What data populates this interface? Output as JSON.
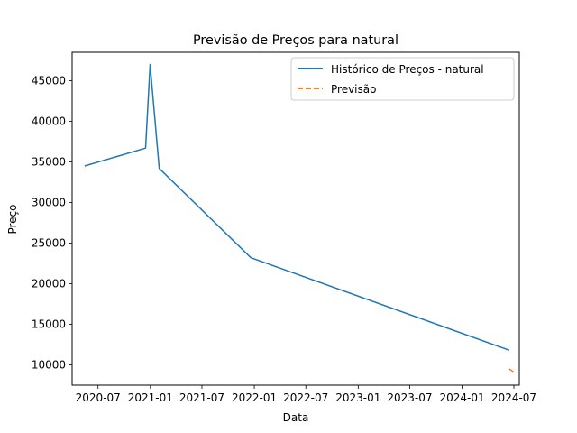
{
  "chart_data": {
    "type": "line",
    "title": "Previsão de Preços para natural",
    "xlabel": "Data",
    "ylabel": "Preço",
    "x_ticks": [
      "2020-07",
      "2021-01",
      "2021-07",
      "2022-01",
      "2022-07",
      "2023-01",
      "2023-07",
      "2024-01",
      "2024-07"
    ],
    "y_ticks": [
      10000,
      15000,
      20000,
      25000,
      30000,
      35000,
      40000,
      45000
    ],
    "ylim": [
      7500,
      48500
    ],
    "xlim": [
      "2020-04-01",
      "2024-07-20"
    ],
    "legend_position": "top-right",
    "grid": false,
    "series": [
      {
        "name": "Histórico de Preços - natural",
        "color": "#1f77b4",
        "style": "solid",
        "points": [
          {
            "x": "2020-05-15",
            "y": 34500
          },
          {
            "x": "2020-12-15",
            "y": 36700
          },
          {
            "x": "2020-12-31",
            "y": 47000
          },
          {
            "x": "2021-02-01",
            "y": 34200
          },
          {
            "x": "2021-12-20",
            "y": 23200
          },
          {
            "x": "2024-06-15",
            "y": 11800
          }
        ]
      },
      {
        "name": "Previsão",
        "color": "#ff7f0e",
        "style": "dashed",
        "points": [
          {
            "x": "2024-06-15",
            "y": 9500
          },
          {
            "x": "2024-07-01",
            "y": 9100
          }
        ]
      }
    ]
  }
}
